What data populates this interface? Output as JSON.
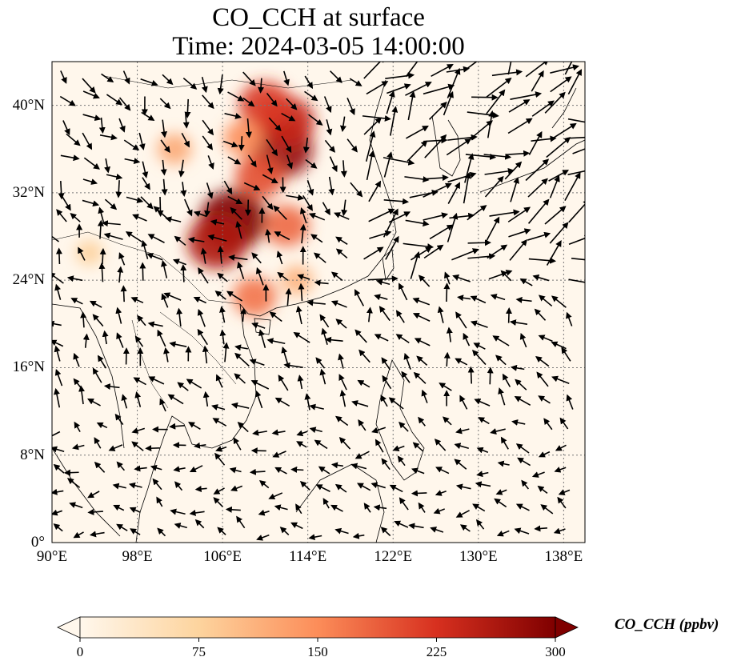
{
  "title": {
    "line1": "CO_CCH at surface",
    "line2": "Time: 2024-03-05 14:00:00"
  },
  "map": {
    "projection": "PlateCarree",
    "lon_range": [
      90,
      140
    ],
    "lat_range": [
      0,
      44
    ],
    "gridlines": true,
    "coastlines": true,
    "borders": true,
    "vectors": "wind",
    "lon_ticks": [
      {
        "lon": 90,
        "label": "90°E"
      },
      {
        "lon": 98,
        "label": "98°E"
      },
      {
        "lon": 106,
        "label": "106°E"
      },
      {
        "lon": 114,
        "label": "114°E"
      },
      {
        "lon": 122,
        "label": "122°E"
      },
      {
        "lon": 130,
        "label": "130°E"
      },
      {
        "lon": 138,
        "label": "138°E"
      }
    ],
    "lat_ticks": [
      {
        "lat": 0,
        "label": "0°"
      },
      {
        "lat": 8,
        "label": "8°N"
      },
      {
        "lat": 16,
        "label": "16°N"
      },
      {
        "lat": 24,
        "label": "24°N"
      },
      {
        "lat": 32,
        "label": "32°N"
      },
      {
        "lat": 40,
        "label": "40°N"
      }
    ],
    "plumes": [
      {
        "lon": 107.0,
        "lat": 29.5,
        "value": 300
      },
      {
        "lon": 105.5,
        "lat": 27.5,
        "value": 260
      },
      {
        "lon": 111.5,
        "lat": 36.0,
        "value": 280
      },
      {
        "lon": 112.0,
        "lat": 38.5,
        "value": 240
      },
      {
        "lon": 110.0,
        "lat": 40.0,
        "value": 220
      },
      {
        "lon": 109.5,
        "lat": 33.5,
        "value": 200
      },
      {
        "lon": 112.0,
        "lat": 29.0,
        "value": 180
      },
      {
        "lon": 109.0,
        "lat": 22.5,
        "value": 170
      },
      {
        "lon": 108.0,
        "lat": 37.0,
        "value": 150
      },
      {
        "lon": 101.5,
        "lat": 36.0,
        "value": 120
      },
      {
        "lon": 93.5,
        "lat": 26.5,
        "value": 80
      },
      {
        "lon": 113.0,
        "lat": 24.0,
        "value": 110
      }
    ]
  },
  "colorbar": {
    "cmap": "OrRd",
    "min": 0,
    "max": 300,
    "extend": "both",
    "ticks": [
      "0",
      "75",
      "150",
      "225",
      "300"
    ],
    "label": "CO_CCH (ppbv)",
    "colors": [
      "#fff7ec",
      "#fdd49e",
      "#fc8d59",
      "#d7301f",
      "#7f0000"
    ]
  }
}
